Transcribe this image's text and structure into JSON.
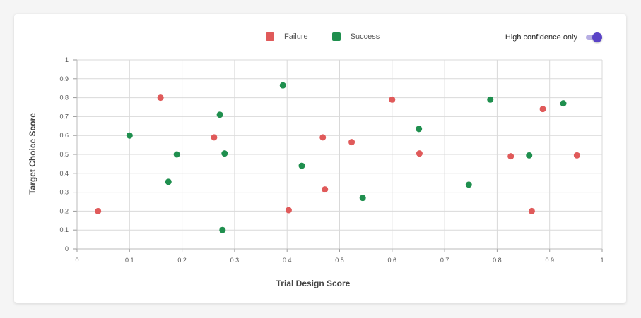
{
  "legend": {
    "failure_label": "Failure",
    "success_label": "Success"
  },
  "toggle": {
    "label": "High confidence only",
    "state": "on"
  },
  "colors": {
    "failure": "#e05a5a",
    "success": "#1f8f4e",
    "toggle_accent": "#5a43c7"
  },
  "chart_data": {
    "type": "scatter",
    "xlabel": "Trial Design Score",
    "ylabel": "Target Choice Score",
    "xlim": [
      0,
      1
    ],
    "ylim": [
      0,
      1
    ],
    "x_ticks": [
      "0",
      "0.1",
      "0.2",
      "0.3",
      "0.4",
      "0.5",
      "0.6",
      "0.7",
      "0.8",
      "0.9",
      "1"
    ],
    "y_ticks": [
      "0",
      "0.1",
      "0.2",
      "0.3",
      "0.4",
      "0.5",
      "0.6",
      "0.7",
      "0.8",
      "0.9",
      "1"
    ],
    "grid": true,
    "legend_position": "top",
    "series": [
      {
        "name": "Failure",
        "color": "#e05a5a",
        "points": [
          {
            "x": 0.04,
            "y": 0.2
          },
          {
            "x": 0.159,
            "y": 0.8
          },
          {
            "x": 0.261,
            "y": 0.59
          },
          {
            "x": 0.403,
            "y": 0.205
          },
          {
            "x": 0.468,
            "y": 0.59
          },
          {
            "x": 0.472,
            "y": 0.315
          },
          {
            "x": 0.523,
            "y": 0.565
          },
          {
            "x": 0.6,
            "y": 0.79
          },
          {
            "x": 0.652,
            "y": 0.505
          },
          {
            "x": 0.826,
            "y": 0.49
          },
          {
            "x": 0.866,
            "y": 0.2
          },
          {
            "x": 0.887,
            "y": 0.74
          },
          {
            "x": 0.952,
            "y": 0.495
          }
        ]
      },
      {
        "name": "Success",
        "color": "#1f8f4e",
        "points": [
          {
            "x": 0.1,
            "y": 0.6
          },
          {
            "x": 0.174,
            "y": 0.355
          },
          {
            "x": 0.19,
            "y": 0.5
          },
          {
            "x": 0.272,
            "y": 0.71
          },
          {
            "x": 0.277,
            "y": 0.1
          },
          {
            "x": 0.281,
            "y": 0.505
          },
          {
            "x": 0.392,
            "y": 0.865
          },
          {
            "x": 0.428,
            "y": 0.44
          },
          {
            "x": 0.544,
            "y": 0.27
          },
          {
            "x": 0.651,
            "y": 0.635
          },
          {
            "x": 0.746,
            "y": 0.34
          },
          {
            "x": 0.787,
            "y": 0.79
          },
          {
            "x": 0.861,
            "y": 0.495
          },
          {
            "x": 0.926,
            "y": 0.77
          }
        ]
      }
    ]
  }
}
